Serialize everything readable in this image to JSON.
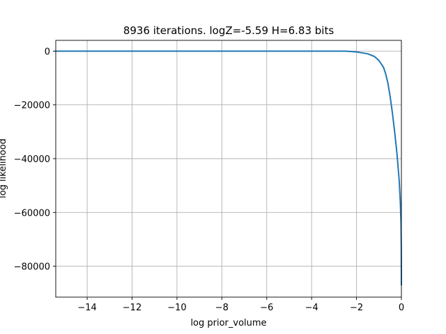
{
  "chart_data": {
    "type": "line",
    "title": "8936 iterations. logZ=-5.59 H=6.83 bits",
    "xlabel": "log prior_volume",
    "ylabel": "log likelihood",
    "xlim": [
      -15.4,
      0
    ],
    "ylim": [
      -91500,
      4000
    ],
    "grid": true,
    "x_ticks": [
      -14,
      -12,
      -10,
      -8,
      -6,
      -4,
      -2,
      0
    ],
    "x_tick_labels": [
      "−14",
      "−12",
      "−10",
      "−8",
      "−6",
      "−4",
      "−2",
      "0"
    ],
    "y_ticks": [
      0,
      -20000,
      -40000,
      -60000,
      -80000
    ],
    "y_tick_labels": [
      "0",
      "−20000",
      "−40000",
      "−60000",
      "−80000"
    ],
    "series": [
      {
        "color": "#1f77b4",
        "x": [
          -15.4,
          -12,
          -8,
          -4,
          -2.5,
          -2,
          -1.5,
          -1.2,
          -1.0,
          -0.8,
          -0.7,
          -0.6,
          -0.5,
          -0.4,
          -0.3,
          -0.2,
          -0.1,
          -0.05,
          -0.02,
          -0.005,
          0
        ],
        "y": [
          0,
          0,
          0,
          0,
          -20,
          -300,
          -1000,
          -2000,
          -3500,
          -6000,
          -8500,
          -12000,
          -17000,
          -23000,
          -30000,
          -38000,
          -48000,
          -56000,
          -64000,
          -73000,
          -87000
        ]
      }
    ]
  }
}
